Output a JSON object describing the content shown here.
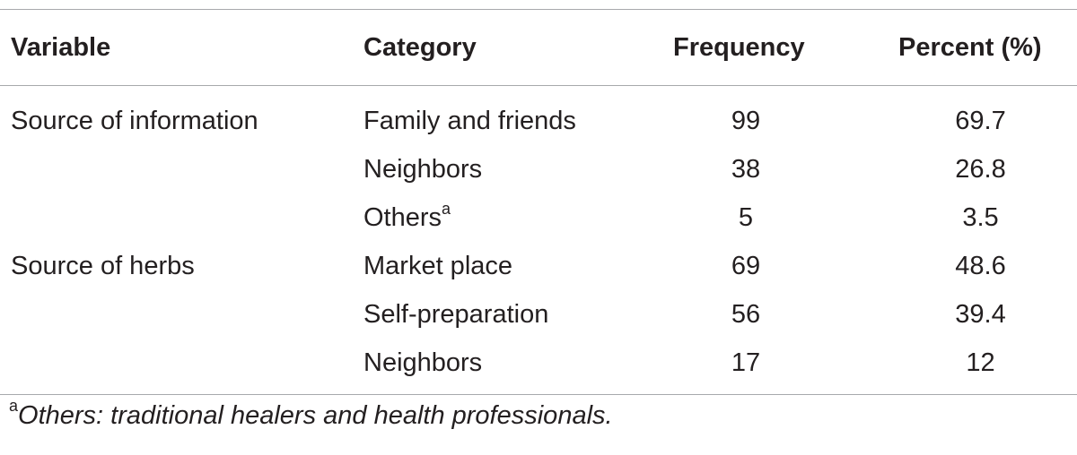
{
  "table": {
    "headers": {
      "variable": "Variable",
      "category": "Category",
      "frequency": "Frequency",
      "percent": "Percent (%)"
    },
    "rows": [
      {
        "variable": "Source of information",
        "category": "Family and friends",
        "category_sup": "",
        "frequency": "99",
        "percent": "69.7"
      },
      {
        "variable": "",
        "category": "Neighbors",
        "category_sup": "",
        "frequency": "38",
        "percent": "26.8"
      },
      {
        "variable": "",
        "category": "Others",
        "category_sup": "a",
        "frequency": "5",
        "percent": "3.5"
      },
      {
        "variable": "Source of herbs",
        "category": "Market place",
        "category_sup": "",
        "frequency": "69",
        "percent": "48.6"
      },
      {
        "variable": "",
        "category": "Self-preparation",
        "category_sup": "",
        "frequency": "56",
        "percent": "39.4"
      },
      {
        "variable": "",
        "category": "Neighbors",
        "category_sup": "",
        "frequency": "17",
        "percent": "12"
      }
    ]
  },
  "footnote": {
    "mark": "a",
    "text": "Others: traditional healers and health professionals."
  }
}
